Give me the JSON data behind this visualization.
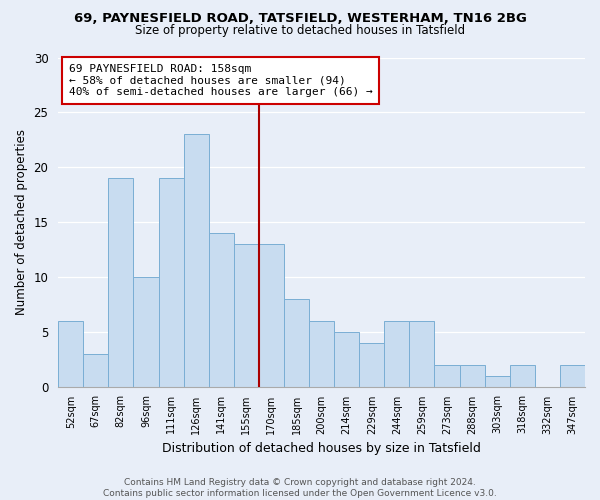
{
  "title1": "69, PAYNESFIELD ROAD, TATSFIELD, WESTERHAM, TN16 2BG",
  "title2": "Size of property relative to detached houses in Tatsfield",
  "xlabel": "Distribution of detached houses by size in Tatsfield",
  "ylabel": "Number of detached properties",
  "bin_labels": [
    "52sqm",
    "67sqm",
    "82sqm",
    "96sqm",
    "111sqm",
    "126sqm",
    "141sqm",
    "155sqm",
    "170sqm",
    "185sqm",
    "200sqm",
    "214sqm",
    "229sqm",
    "244sqm",
    "259sqm",
    "273sqm",
    "288sqm",
    "303sqm",
    "318sqm",
    "332sqm",
    "347sqm"
  ],
  "bar_heights": [
    6,
    3,
    19,
    10,
    19,
    23,
    14,
    13,
    13,
    8,
    6,
    5,
    4,
    6,
    6,
    2,
    2,
    1,
    2,
    0,
    2
  ],
  "bar_color": "#c8dcf0",
  "bar_edge_color": "#7aaed4",
  "ylim": [
    0,
    30
  ],
  "yticks": [
    0,
    5,
    10,
    15,
    20,
    25,
    30
  ],
  "vline_x": 7.5,
  "vline_color": "#aa0000",
  "annotation_title": "69 PAYNESFIELD ROAD: 158sqm",
  "annotation_line1": "← 58% of detached houses are smaller (94)",
  "annotation_line2": "40% of semi-detached houses are larger (66) →",
  "annotation_box_color": "#ffffff",
  "annotation_box_edge": "#cc0000",
  "footnote1": "Contains HM Land Registry data © Crown copyright and database right 2024.",
  "footnote2": "Contains public sector information licensed under the Open Government Licence v3.0.",
  "background_color": "#e8eef8",
  "grid_color": "#ffffff",
  "title1_fontsize": 9.5,
  "title2_fontsize": 8.5,
  "ylabel_fontsize": 8.5,
  "xlabel_fontsize": 9,
  "annot_fontsize": 8,
  "footnote_fontsize": 6.5
}
